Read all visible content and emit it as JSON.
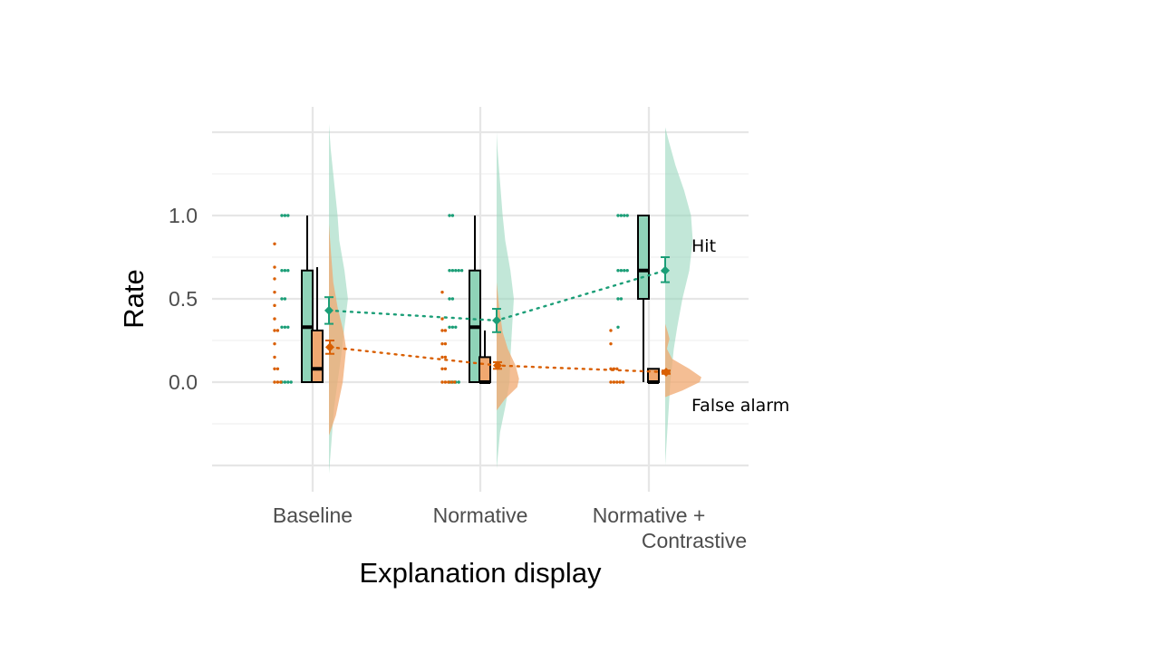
{
  "chart_data": {
    "type": "raincloud",
    "xlabel": "Explanation display",
    "ylabel": "Rate",
    "y_ticks": [
      "0.0",
      "0.5",
      "1.0"
    ],
    "y_tick_values": [
      0,
      0.5,
      1.0
    ],
    "ylim": [
      -0.5,
      1.5
    ],
    "grid": true,
    "categories": [
      {
        "lines": [
          "Baseline"
        ]
      },
      {
        "lines": [
          "Normative"
        ]
      },
      {
        "lines": [
          "Normative +",
          "Contrastive"
        ]
      }
    ],
    "series": [
      {
        "name": "Hit",
        "color": "#1b9e77",
        "fill": "#8fd3b8",
        "mean": [
          0.43,
          0.37,
          0.67
        ],
        "ci_low": [
          0.35,
          0.3,
          0.6
        ],
        "ci_high": [
          0.51,
          0.44,
          0.75
        ],
        "boxes": [
          {
            "min": 0,
            "q1": 0,
            "median": 0.33,
            "q3": 0.67,
            "max": 1.0
          },
          {
            "min": 0,
            "q1": 0,
            "median": 0.33,
            "q3": 0.67,
            "max": 1.0
          },
          {
            "min": 0,
            "q1": 0.5,
            "median": 0.67,
            "q3": 1.0,
            "max": 1.0
          }
        ],
        "points": [
          [
            1,
            1,
            1,
            0.67,
            0.67,
            0.67,
            0.5,
            0.5,
            0.33,
            0.33,
            0.33,
            0,
            0,
            0,
            0
          ],
          [
            1,
            1,
            0.67,
            0.67,
            0.67,
            0.67,
            0.67,
            0.5,
            0.5,
            0.33,
            0.33,
            0.33,
            0,
            0,
            0,
            0
          ],
          [
            1,
            1,
            1,
            1,
            0.67,
            0.67,
            0.67,
            0.67,
            0.5,
            0.5,
            0.33
          ]
        ],
        "density": [
          [
            [
              -0.55,
              0
            ],
            [
              -0.35,
              0.03
            ],
            [
              -0.15,
              0.06
            ],
            [
              0.0,
              0.1
            ],
            [
              0.15,
              0.14
            ],
            [
              0.33,
              0.18
            ],
            [
              0.5,
              0.22
            ],
            [
              0.67,
              0.18
            ],
            [
              0.85,
              0.12
            ],
            [
              1.0,
              0.1
            ],
            [
              1.2,
              0.06
            ],
            [
              1.4,
              0.02
            ],
            [
              1.55,
              0
            ]
          ],
          [
            [
              -0.52,
              0
            ],
            [
              -0.3,
              0.04
            ],
            [
              -0.15,
              0.1
            ],
            [
              0.0,
              0.15
            ],
            [
              0.15,
              0.16
            ],
            [
              0.33,
              0.18
            ],
            [
              0.5,
              0.2
            ],
            [
              0.67,
              0.16
            ],
            [
              0.85,
              0.1
            ],
            [
              1.0,
              0.07
            ],
            [
              1.2,
              0.04
            ],
            [
              1.4,
              0.01
            ],
            [
              1.5,
              0
            ]
          ],
          [
            [
              -0.5,
              0
            ],
            [
              -0.25,
              0.03
            ],
            [
              0.0,
              0.06
            ],
            [
              0.2,
              0.1
            ],
            [
              0.33,
              0.14
            ],
            [
              0.5,
              0.2
            ],
            [
              0.67,
              0.28
            ],
            [
              0.85,
              0.32
            ],
            [
              1.0,
              0.3
            ],
            [
              1.15,
              0.22
            ],
            [
              1.3,
              0.12
            ],
            [
              1.45,
              0.04
            ],
            [
              1.53,
              0
            ]
          ]
        ]
      },
      {
        "name": "False alarm",
        "color": "#d95f02",
        "fill": "#f0a870",
        "mean": [
          0.21,
          0.1,
          0.06
        ],
        "ci_low": [
          0.17,
          0.08,
          0.05
        ],
        "ci_high": [
          0.25,
          0.12,
          0.07
        ],
        "boxes": [
          {
            "min": 0,
            "q1": 0,
            "median": 0.08,
            "q3": 0.31,
            "max": 0.69
          },
          {
            "min": 0,
            "q1": 0,
            "median": 0,
            "q3": 0.15,
            "max": 0.31
          },
          {
            "min": 0,
            "q1": 0,
            "median": 0,
            "q3": 0.08,
            "max": 0.08
          }
        ],
        "points": [
          [
            0.83,
            0.69,
            0.62,
            0.54,
            0.46,
            0.38,
            0.31,
            0.31,
            0.23,
            0.15,
            0.08,
            0.08,
            0,
            0,
            0
          ],
          [
            0.54,
            0.38,
            0.31,
            0.31,
            0.23,
            0.23,
            0.15,
            0.15,
            0.08,
            0.08,
            0,
            0,
            0,
            0,
            0
          ],
          [
            0.31,
            0.23,
            0.08,
            0.08,
            0.08,
            0,
            0,
            0,
            0,
            0
          ]
        ],
        "density": [
          [
            [
              -0.32,
              0
            ],
            [
              -0.2,
              0.08
            ],
            [
              0.0,
              0.16
            ],
            [
              0.1,
              0.18
            ],
            [
              0.2,
              0.2
            ],
            [
              0.3,
              0.17
            ],
            [
              0.45,
              0.1
            ],
            [
              0.6,
              0.05
            ],
            [
              0.8,
              0.02
            ],
            [
              0.95,
              0
            ]
          ],
          [
            [
              -0.17,
              0
            ],
            [
              -0.1,
              0.1
            ],
            [
              -0.03,
              0.24
            ],
            [
              0.02,
              0.26
            ],
            [
              0.1,
              0.22
            ],
            [
              0.2,
              0.13
            ],
            [
              0.3,
              0.07
            ],
            [
              0.45,
              0.03
            ],
            [
              0.6,
              0
            ]
          ],
          [
            [
              -0.09,
              0
            ],
            [
              -0.05,
              0.2
            ],
            [
              0.0,
              0.4
            ],
            [
              0.03,
              0.42
            ],
            [
              0.08,
              0.28
            ],
            [
              0.14,
              0.08
            ],
            [
              0.2,
              0.02
            ],
            [
              0.26,
              0.05
            ],
            [
              0.3,
              0.03
            ],
            [
              0.35,
              0
            ]
          ]
        ]
      }
    ]
  }
}
